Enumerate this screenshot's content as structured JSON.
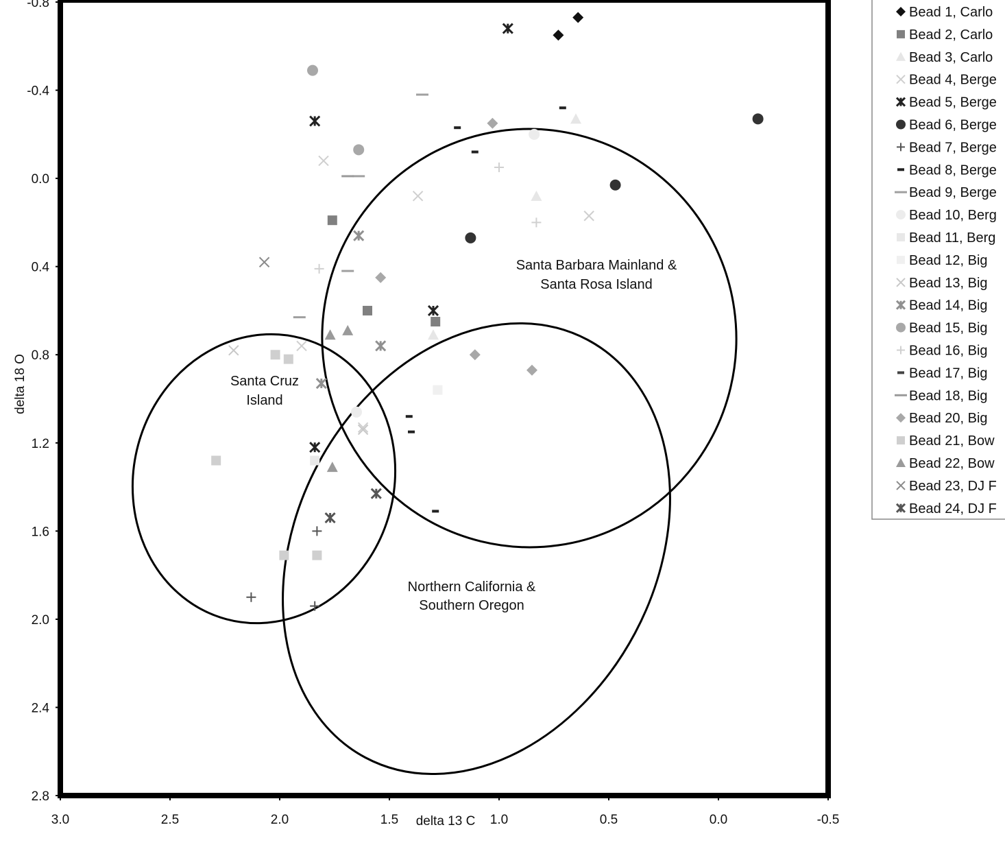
{
  "chart_data": {
    "type": "scatter",
    "title": "",
    "xlabel": "delta 13 C",
    "ylabel": "delta 18 O",
    "xlim": [
      3.0,
      -0.5
    ],
    "ylim": [
      -0.8,
      2.8
    ],
    "x_reversed": true,
    "y_reversed": true,
    "grid": false,
    "legend_placement": "right",
    "xticks": [
      "3.0",
      "2.5",
      "2.0",
      "1.5",
      "1.0",
      "0.5",
      "0.0",
      "-0.5"
    ],
    "xtick_values": [
      3.0,
      2.5,
      2.0,
      1.5,
      1.0,
      0.5,
      0.0,
      -0.5
    ],
    "yticks": [
      "-0.8",
      "-0.4",
      "0.0",
      "0.4",
      "0.8",
      "1.2",
      "1.6",
      "2.0",
      "2.4",
      "2.8"
    ],
    "ytick_values": [
      -0.8,
      -0.4,
      0.0,
      0.4,
      0.8,
      1.2,
      1.6,
      2.0,
      2.4,
      2.8
    ],
    "annotations": [
      {
        "text_lines": [
          "Santa Barbara Mainland &",
          "Santa Rosa Island"
        ]
      },
      {
        "text_lines": [
          "Santa Cruz",
          "Island"
        ]
      },
      {
        "text_lines": [
          "Northern California &",
          "Southern Oregon"
        ]
      }
    ],
    "series": [
      {
        "name": "Bead 1, Carlo",
        "marker": "diamond",
        "color": "#111111",
        "points": [
          [
            0.64,
            -0.73
          ],
          [
            0.73,
            -0.65
          ]
        ]
      },
      {
        "name": "Bead 2, Carlo",
        "marker": "square",
        "color": "#808080",
        "points": [
          [
            1.76,
            0.19
          ],
          [
            1.6,
            0.6
          ],
          [
            1.29,
            0.65
          ]
        ]
      },
      {
        "name": "Bead 3, Carlo",
        "marker": "triangle",
        "color": "#e6e6e6",
        "points": [
          [
            0.65,
            -0.27
          ],
          [
            0.83,
            0.08
          ],
          [
            1.3,
            0.71
          ]
        ]
      },
      {
        "name": "Bead 4, Berge",
        "marker": "x",
        "color": "#cfcfcf",
        "points": [
          [
            1.8,
            -0.08
          ],
          [
            1.37,
            0.08
          ],
          [
            0.59,
            0.17
          ],
          [
            1.62,
            1.13
          ],
          [
            1.9,
            0.76
          ]
        ]
      },
      {
        "name": "Bead 5, Berge",
        "marker": "star",
        "color": "#222222",
        "points": [
          [
            0.96,
            -0.68
          ],
          [
            1.84,
            -0.26
          ],
          [
            1.3,
            0.6
          ],
          [
            1.84,
            1.22
          ]
        ]
      },
      {
        "name": "Bead 6, Berge",
        "marker": "circle",
        "color": "#333333",
        "points": [
          [
            -0.18,
            -0.27
          ],
          [
            0.47,
            0.03
          ],
          [
            1.13,
            0.27
          ]
        ]
      },
      {
        "name": "Bead 7, Berge",
        "marker": "plus",
        "color": "#555555",
        "points": [
          [
            2.13,
            1.9
          ],
          [
            1.83,
            1.6
          ],
          [
            1.84,
            1.94
          ]
        ]
      },
      {
        "name": "Bead 8, Berge",
        "marker": "dash",
        "color": "#222222",
        "points": [
          [
            1.19,
            -0.23
          ],
          [
            1.11,
            -0.12
          ],
          [
            0.71,
            -0.32
          ],
          [
            1.41,
            1.08
          ],
          [
            1.4,
            1.15
          ],
          [
            1.29,
            1.51
          ]
        ]
      },
      {
        "name": "Bead 9, Berge",
        "marker": "longdash",
        "color": "#a0a0a0",
        "points": [
          [
            1.35,
            -0.38
          ],
          [
            1.64,
            -0.01
          ],
          [
            1.69,
            0.42
          ],
          [
            1.91,
            0.63
          ]
        ]
      },
      {
        "name": "Bead 10, Berg",
        "marker": "circle",
        "color": "#ececec",
        "points": [
          [
            1.65,
            1.06
          ],
          [
            0.84,
            -0.2
          ]
        ]
      },
      {
        "name": "Bead 11, Berg",
        "marker": "square",
        "color": "#e8e8e8",
        "points": [
          [
            1.84,
            1.28
          ]
        ]
      },
      {
        "name": "Bead 12, Big",
        "marker": "square",
        "color": "#f0f0f0",
        "points": [
          [
            1.28,
            0.96
          ]
        ]
      },
      {
        "name": "Bead 13, Big",
        "marker": "x",
        "color": "#c8c8c8",
        "points": [
          [
            2.21,
            0.78
          ],
          [
            1.62,
            1.14
          ]
        ]
      },
      {
        "name": "Bead 14, Big",
        "marker": "star",
        "color": "#909090",
        "points": [
          [
            1.64,
            0.26
          ],
          [
            1.54,
            0.76
          ],
          [
            1.81,
            0.93
          ]
        ]
      },
      {
        "name": "Bead 15, Big",
        "marker": "circle",
        "color": "#a8a8a8",
        "points": [
          [
            1.85,
            -0.49
          ],
          [
            1.64,
            -0.13
          ]
        ]
      },
      {
        "name": "Bead 16, Big",
        "marker": "plus",
        "color": "#d0d0d0",
        "points": [
          [
            1.0,
            -0.05
          ],
          [
            0.83,
            0.2
          ],
          [
            1.82,
            0.41
          ]
        ]
      },
      {
        "name": "Bead 17, Big",
        "marker": "dash",
        "color": "#444444",
        "points": []
      },
      {
        "name": "Bead 18, Big",
        "marker": "longdash",
        "color": "#9a9a9a",
        "points": [
          [
            1.69,
            -0.01
          ]
        ]
      },
      {
        "name": "Bead 20, Big",
        "marker": "diamond",
        "color": "#a8a8a8",
        "points": [
          [
            1.03,
            -0.25
          ],
          [
            1.54,
            0.45
          ],
          [
            1.11,
            0.8
          ],
          [
            0.85,
            0.87
          ]
        ]
      },
      {
        "name": "Bead 21, Bow",
        "marker": "square",
        "color": "#cfcfcf",
        "points": [
          [
            2.29,
            1.28
          ],
          [
            2.02,
            0.8
          ],
          [
            1.96,
            0.82
          ],
          [
            1.98,
            1.71
          ],
          [
            1.83,
            1.71
          ]
        ]
      },
      {
        "name": "Bead 22, Bow",
        "marker": "triangle",
        "color": "#9a9a9a",
        "points": [
          [
            1.77,
            0.71
          ],
          [
            1.69,
            0.69
          ],
          [
            1.76,
            1.31
          ]
        ]
      },
      {
        "name": "Bead 23, DJ F",
        "marker": "x",
        "color": "#8a8a8a",
        "points": [
          [
            2.07,
            0.38
          ]
        ]
      },
      {
        "name": "Bead 24, DJ F",
        "marker": "star",
        "color": "#555555",
        "points": [
          [
            1.77,
            1.54
          ],
          [
            1.56,
            1.43
          ]
        ]
      }
    ]
  }
}
